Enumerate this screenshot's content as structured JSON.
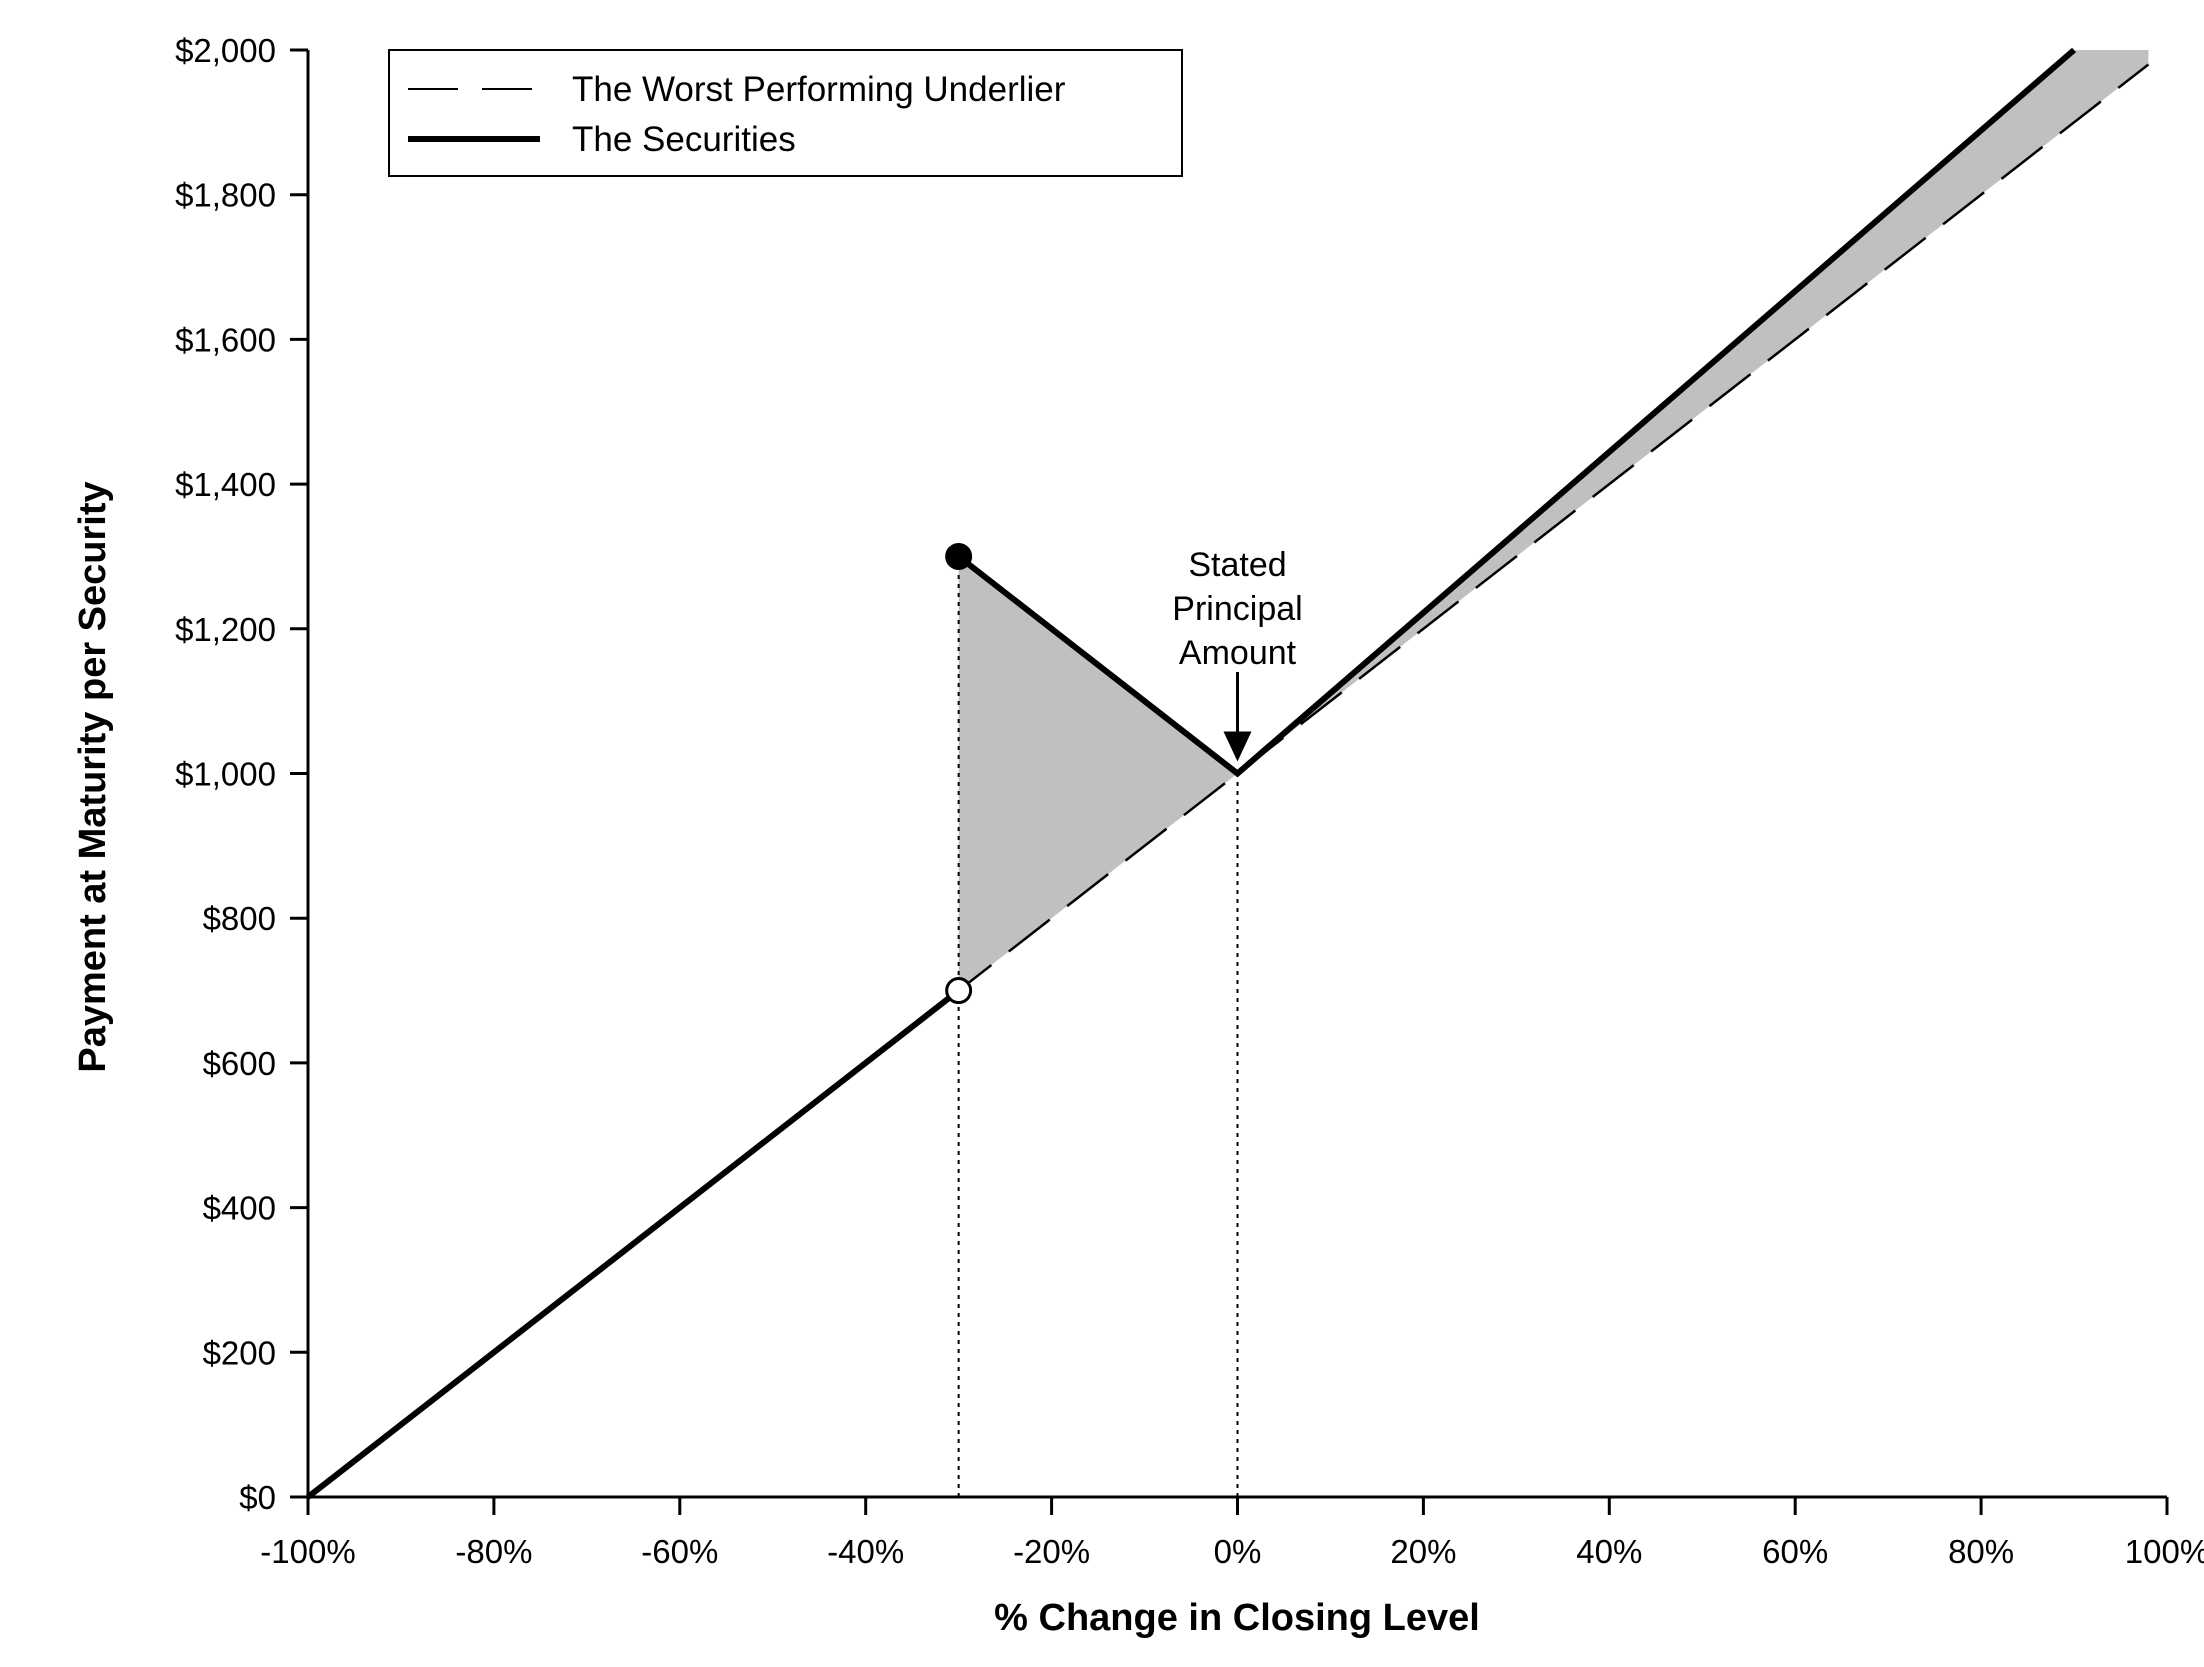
{
  "chart_data": {
    "type": "line",
    "xlabel": "% Change in Closing Level",
    "ylabel": "Payment at Maturity per Security",
    "xlim": [
      -100,
      100
    ],
    "ylim": [
      0,
      2000
    ],
    "x_ticks": [
      -100,
      -80,
      -60,
      -40,
      -20,
      0,
      20,
      40,
      60,
      80,
      100
    ],
    "x_tick_labels": [
      "-100%",
      "-80%",
      "-60%",
      "-40%",
      "-20%",
      "0%",
      "20%",
      "40%",
      "60%",
      "80%",
      "100%"
    ],
    "y_ticks": [
      0,
      200,
      400,
      600,
      800,
      1000,
      1200,
      1400,
      1600,
      1800,
      2000
    ],
    "y_tick_labels": [
      "$0",
      "$200",
      "$400",
      "$600",
      "$800",
      "$1,000",
      "$1,200",
      "$1,400",
      "$1,600",
      "$1,800",
      "$2,000"
    ],
    "grid": false,
    "legend_position": "top-left",
    "series": [
      {
        "name": "The Worst Performing Underlier",
        "style": "dashed",
        "color": "#000000",
        "segments": [
          [
            [
              -100,
              0
            ],
            [
              98,
              1980
            ]
          ]
        ]
      },
      {
        "name": "The Securities",
        "style": "solid",
        "color": "#000000",
        "segments": [
          [
            [
              -100,
              0
            ],
            [
              -30,
              700
            ]
          ],
          [
            [
              -30,
              1300
            ],
            [
              0,
              1000
            ],
            [
              90,
              2000
            ]
          ]
        ]
      }
    ],
    "markers": [
      {
        "x": -30,
        "y": 1300,
        "fill": "filled"
      },
      {
        "x": -30,
        "y": 700,
        "fill": "open"
      }
    ],
    "shaded_regions": [
      {
        "color": "#c0c0c0",
        "points": [
          [
            -30,
            700
          ],
          [
            -30,
            1300
          ],
          [
            0,
            1000
          ]
        ]
      },
      {
        "color": "#c0c0c0",
        "points": [
          [
            0,
            1000
          ],
          [
            90,
            2000
          ],
          [
            98,
            2000
          ],
          [
            98,
            1980
          ]
        ]
      }
    ],
    "reference_lines": [
      {
        "x": -30,
        "style": "dotted"
      },
      {
        "x": 0,
        "style": "dotted"
      }
    ],
    "annotations": [
      {
        "lines": [
          "Stated",
          "Principal",
          "Amount"
        ],
        "arrow_to": [
          0,
          1000
        ]
      }
    ]
  }
}
